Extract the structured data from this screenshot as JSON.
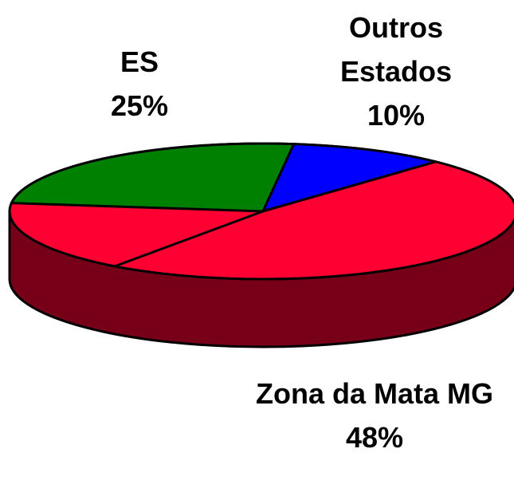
{
  "chart_data": {
    "type": "pie3d",
    "categories": [
      "ES",
      "Outros Estados",
      "Zona da Mata MG"
    ],
    "values": [
      25,
      10,
      48
    ],
    "value_labels": [
      "25%",
      "10%",
      "48%"
    ],
    "colors": [
      "#008000",
      "#0000ff",
      "#ff0033"
    ]
  }
}
